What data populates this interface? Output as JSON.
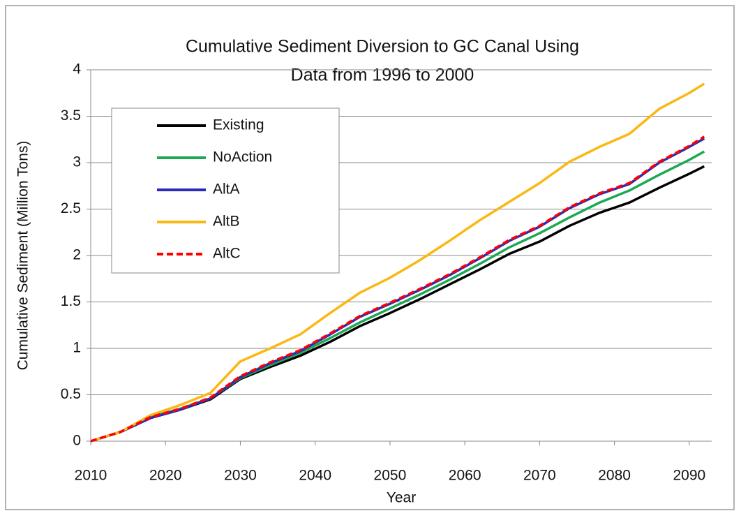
{
  "chart_data": {
    "type": "line",
    "title": [
      "Cumulative Sediment  Diversion to GC Canal      Using",
      "Data from 1996 to 2000"
    ],
    "x_label": "Year",
    "y_label": "Cumulative Sediment (Million Tons)",
    "x": [
      2010,
      2014,
      2018,
      2022,
      2026,
      2030,
      2034,
      2038,
      2042,
      2046,
      2050,
      2054,
      2058,
      2062,
      2066,
      2070,
      2074,
      2078,
      2082,
      2086,
      2090,
      2092
    ],
    "series": [
      {
        "name": "Existing",
        "color": "#000000",
        "values": [
          0,
          0.1,
          0.25,
          0.34,
          0.45,
          0.67,
          0.8,
          0.92,
          1.07,
          1.24,
          1.38,
          1.53,
          1.69,
          1.85,
          2.02,
          2.15,
          2.32,
          2.46,
          2.57,
          2.73,
          2.88,
          2.96
        ]
      },
      {
        "name": "NoAction",
        "color": "#1ea854",
        "values": [
          0,
          0.1,
          0.26,
          0.35,
          0.46,
          0.68,
          0.82,
          0.95,
          1.11,
          1.28,
          1.43,
          1.58,
          1.74,
          1.91,
          2.09,
          2.24,
          2.41,
          2.57,
          2.7,
          2.87,
          3.03,
          3.12
        ]
      },
      {
        "name": "AltA",
        "color": "#2a2ab8",
        "values": [
          0,
          0.1,
          0.25,
          0.34,
          0.46,
          0.69,
          0.84,
          0.97,
          1.15,
          1.34,
          1.48,
          1.63,
          1.79,
          1.97,
          2.16,
          2.31,
          2.51,
          2.66,
          2.77,
          3.0,
          3.17,
          3.26
        ]
      },
      {
        "name": "AltB",
        "color": "#fbb714",
        "values": [
          0,
          0.1,
          0.28,
          0.39,
          0.52,
          0.86,
          1.0,
          1.15,
          1.38,
          1.6,
          1.76,
          1.95,
          2.16,
          2.38,
          2.58,
          2.78,
          3.01,
          3.17,
          3.31,
          3.58,
          3.75,
          3.85
        ]
      },
      {
        "name": "AltC",
        "color": "#ff0000",
        "dashed": true,
        "values": [
          0,
          0.1,
          0.26,
          0.35,
          0.47,
          0.7,
          0.85,
          0.98,
          1.16,
          1.35,
          1.49,
          1.64,
          1.8,
          1.98,
          2.17,
          2.32,
          2.52,
          2.67,
          2.78,
          3.01,
          3.18,
          3.28
        ]
      }
    ],
    "xlim": [
      2010,
      2093
    ],
    "xticks": [
      2010,
      2020,
      2030,
      2040,
      2050,
      2060,
      2070,
      2080,
      2090
    ],
    "ylim": [
      0,
      4
    ],
    "yticks": [
      0,
      0.5,
      1,
      1.5,
      2,
      2.5,
      3,
      3.5,
      4
    ],
    "grid": true,
    "legend": "upper left"
  }
}
